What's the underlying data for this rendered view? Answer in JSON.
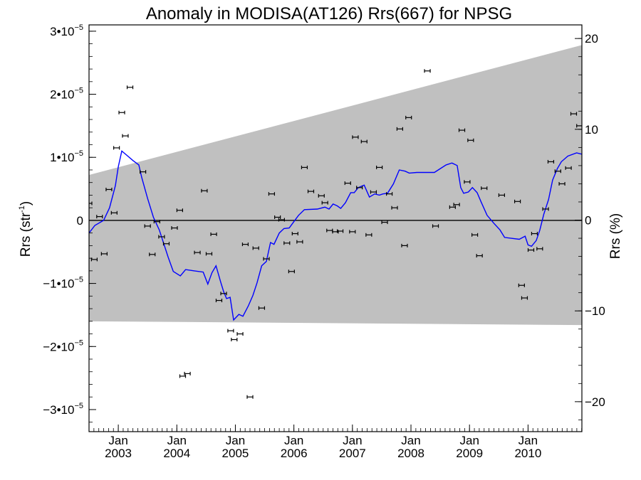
{
  "chart_data": {
    "type": "scatter",
    "title": "Anomaly in MODISA(AT126) Rrs(667) for NPSG",
    "ylabel_left": {
      "main": "Rrs (str",
      "sup": "-1",
      "tail": ")"
    },
    "ylabel_right": "Rrs (%)",
    "ylim_left": [
      -3.35e-05,
      3.1e-05
    ],
    "ylim_right": [
      -23.3,
      21.5
    ],
    "xlim": [
      2002.5,
      2010.92
    ],
    "y_ticks_left": [
      {
        "value": -3e-05,
        "base": "−3•10",
        "exp": "−5"
      },
      {
        "value": -2e-05,
        "base": "−2•10",
        "exp": "−5"
      },
      {
        "value": -1e-05,
        "base": "−1•10",
        "exp": "−5"
      },
      {
        "value": 0,
        "base": "0",
        "exp": ""
      },
      {
        "value": 1e-05,
        "base": "1•10",
        "exp": "−5"
      },
      {
        "value": 2e-05,
        "base": "2•10",
        "exp": "−5"
      },
      {
        "value": 3e-05,
        "base": "3•10",
        "exp": "−5"
      }
    ],
    "y_ticks_right": [
      {
        "value": -20,
        "label": "−20"
      },
      {
        "value": -10,
        "label": "−10"
      },
      {
        "value": 0,
        "label": "0"
      },
      {
        "value": 10,
        "label": "10"
      },
      {
        "value": 20,
        "label": "20"
      }
    ],
    "x_ticks": [
      {
        "value": 2003.0,
        "month": "Jan",
        "year": "2003"
      },
      {
        "value": 2004.0,
        "month": "Jan",
        "year": "2004"
      },
      {
        "value": 2005.0,
        "month": "Jan",
        "year": "2005"
      },
      {
        "value": 2006.0,
        "month": "Jan",
        "year": "2006"
      },
      {
        "value": 2007.0,
        "month": "Jan",
        "year": "2007"
      },
      {
        "value": 2008.0,
        "month": "Jan",
        "year": "2008"
      },
      {
        "value": 2009.0,
        "month": "Jan",
        "year": "2009"
      },
      {
        "value": 2010.0,
        "month": "Jan",
        "year": "2010"
      }
    ],
    "grey_band": {
      "upper": [
        [
          2002.5,
          7.2e-06
        ],
        [
          2010.92,
          2.78e-05
        ]
      ],
      "lower": [
        [
          2002.5,
          -1.6e-05
        ],
        [
          2010.92,
          -1.66e-05
        ]
      ]
    },
    "points": [
      [
        2002.5,
        2.7e-06
      ],
      [
        2002.59,
        -6.2e-06
      ],
      [
        2002.68,
        6e-07
      ],
      [
        2002.76,
        -5.3e-06
      ],
      [
        2002.84,
        4.9e-06
      ],
      [
        2002.93,
        1.2e-06
      ],
      [
        2002.97,
        1.15e-05
      ],
      [
        2003.06,
        1.71e-05
      ],
      [
        2003.12,
        1.34e-05
      ],
      [
        2003.2,
        2.11e-05
      ],
      [
        2003.42,
        7.7e-06
      ],
      [
        2003.5,
        -9e-07
      ],
      [
        2003.58,
        -5.4e-06
      ],
      [
        2003.66,
        -2e-07
      ],
      [
        2003.74,
        -2.6e-06
      ],
      [
        2003.82,
        -3.7e-06
      ],
      [
        2003.96,
        -1.2e-06
      ],
      [
        2004.05,
        1.6e-06
      ],
      [
        2004.1,
        -2.47e-05
      ],
      [
        2004.18,
        -2.43e-05
      ],
      [
        2004.35,
        -5.1e-06
      ],
      [
        2004.47,
        4.7e-06
      ],
      [
        2004.55,
        -5.3e-06
      ],
      [
        2004.63,
        -2.2e-06
      ],
      [
        2004.72,
        -1.27e-05
      ],
      [
        2004.8,
        -1.16e-05
      ],
      [
        2004.92,
        -1.75e-05
      ],
      [
        2004.98,
        -1.89e-05
      ],
      [
        2005.08,
        -1.8e-05
      ],
      [
        2005.17,
        -3.8e-06
      ],
      [
        2005.25,
        -2.8e-05
      ],
      [
        2005.35,
        -4.4e-06
      ],
      [
        2005.45,
        -1.39e-05
      ],
      [
        2005.53,
        -6.1e-06
      ],
      [
        2005.62,
        4.2e-06
      ],
      [
        2005.72,
        5e-07
      ],
      [
        2005.79,
        1e-07
      ],
      [
        2005.88,
        -3.6e-06
      ],
      [
        2005.96,
        -8.1e-06
      ],
      [
        2006.02,
        -2.1e-06
      ],
      [
        2006.1,
        -3.4e-06
      ],
      [
        2006.18,
        8.4e-06
      ],
      [
        2006.29,
        4.6e-06
      ],
      [
        2006.47,
        3.9e-06
      ],
      [
        2006.53,
        2.8e-06
      ],
      [
        2006.61,
        -1.6e-06
      ],
      [
        2006.71,
        -1.8e-06
      ],
      [
        2006.79,
        -1.7e-06
      ],
      [
        2006.92,
        5.9e-06
      ],
      [
        2007.0,
        -1.8e-06
      ],
      [
        2007.05,
        1.32e-05
      ],
      [
        2007.12,
        5.2e-06
      ],
      [
        2007.2,
        1.25e-05
      ],
      [
        2007.28,
        -2.3e-06
      ],
      [
        2007.36,
        4.5e-06
      ],
      [
        2007.46,
        8.4e-06
      ],
      [
        2007.55,
        -3e-07
      ],
      [
        2007.63,
        4.2e-06
      ],
      [
        2007.72,
        2e-06
      ],
      [
        2007.81,
        1.45e-05
      ],
      [
        2007.89,
        -4e-06
      ],
      [
        2007.96,
        1.63e-05
      ],
      [
        2008.28,
        2.37e-05
      ],
      [
        2008.42,
        -9e-07
      ],
      [
        2008.71,
        2.1e-06
      ],
      [
        2008.78,
        2.5e-06
      ],
      [
        2008.87,
        1.43e-05
      ],
      [
        2008.96,
        6.1e-06
      ],
      [
        2009.02,
        1.27e-05
      ],
      [
        2009.09,
        -2.3e-06
      ],
      [
        2009.17,
        -5.6e-06
      ],
      [
        2009.25,
        5.1e-06
      ],
      [
        2009.55,
        4e-06
      ],
      [
        2009.82,
        3e-06
      ],
      [
        2009.89,
        -1.03e-05
      ],
      [
        2009.94,
        -1.23e-05
      ],
      [
        2010.05,
        -4.7e-06
      ],
      [
        2010.11,
        -2.1e-06
      ],
      [
        2010.2,
        -4.5e-06
      ],
      [
        2010.3,
        1.8e-06
      ],
      [
        2010.39,
        9.3e-06
      ],
      [
        2010.51,
        7.8e-06
      ],
      [
        2010.58,
        5.8e-06
      ],
      [
        2010.69,
        8.3e-06
      ],
      [
        2010.78,
        1.69e-05
      ],
      [
        2010.88,
        1.5e-05
      ]
    ],
    "line": [
      [
        2002.5,
        -2e-06
      ],
      [
        2002.6,
        -8e-07
      ],
      [
        2002.75,
        0
      ],
      [
        2002.85,
        2e-06
      ],
      [
        2002.95,
        5.5e-06
      ],
      [
        2003.0,
        8.5e-06
      ],
      [
        2003.06,
        1.1e-05
      ],
      [
        2003.15,
        1.03e-05
      ],
      [
        2003.25,
        9.5e-06
      ],
      [
        2003.35,
        8.8e-06
      ],
      [
        2003.4,
        6.8e-06
      ],
      [
        2003.5,
        3.5e-06
      ],
      [
        2003.6,
        5e-07
      ],
      [
        2003.7,
        -1.5e-06
      ],
      [
        2003.77,
        -3.5e-06
      ],
      [
        2003.85,
        -5.8e-06
      ],
      [
        2003.94,
        -8.1e-06
      ],
      [
        2004.06,
        -8.8e-06
      ],
      [
        2004.15,
        -7.8e-06
      ],
      [
        2004.3,
        -8e-06
      ],
      [
        2004.45,
        -8.2e-06
      ],
      [
        2004.53,
        -1.01e-05
      ],
      [
        2004.6,
        -8.3e-06
      ],
      [
        2004.67,
        -7.2e-06
      ],
      [
        2004.75,
        -9.8e-06
      ],
      [
        2004.8,
        -1.13e-05
      ],
      [
        2004.85,
        -1.24e-05
      ],
      [
        2004.91,
        -1.22e-05
      ],
      [
        2004.97,
        -1.58e-05
      ],
      [
        2005.06,
        -1.49e-05
      ],
      [
        2005.13,
        -1.52e-05
      ],
      [
        2005.22,
        -1.36e-05
      ],
      [
        2005.3,
        -1.19e-05
      ],
      [
        2005.37,
        -9.9e-06
      ],
      [
        2005.45,
        -7.2e-06
      ],
      [
        2005.53,
        -6.5e-06
      ],
      [
        2005.6,
        -3.5e-06
      ],
      [
        2005.66,
        -3.8e-06
      ],
      [
        2005.75,
        -2e-06
      ],
      [
        2005.83,
        -1.3e-06
      ],
      [
        2005.92,
        -1.2e-06
      ],
      [
        2006.0,
        -2e-07
      ],
      [
        2006.08,
        8e-07
      ],
      [
        2006.18,
        1.7e-06
      ],
      [
        2006.4,
        1.8e-06
      ],
      [
        2006.53,
        2.1e-06
      ],
      [
        2006.6,
        1.8e-06
      ],
      [
        2006.67,
        2.6e-06
      ],
      [
        2006.74,
        2.3e-06
      ],
      [
        2006.8,
        1.9e-06
      ],
      [
        2006.88,
        2.8e-06
      ],
      [
        2006.97,
        4.4e-06
      ],
      [
        2007.03,
        4.4e-06
      ],
      [
        2007.1,
        5.2e-06
      ],
      [
        2007.2,
        5.6e-06
      ],
      [
        2007.29,
        3.7e-06
      ],
      [
        2007.38,
        4.2e-06
      ],
      [
        2007.46,
        4e-06
      ],
      [
        2007.52,
        4.2e-06
      ],
      [
        2007.6,
        4.3e-06
      ],
      [
        2007.7,
        5.8e-06
      ],
      [
        2007.8,
        8e-06
      ],
      [
        2007.9,
        7.8e-06
      ],
      [
        2007.97,
        7.5e-06
      ],
      [
        2008.1,
        7.6e-06
      ],
      [
        2008.4,
        7.6e-06
      ],
      [
        2008.6,
        8.8e-06
      ],
      [
        2008.7,
        9.1e-06
      ],
      [
        2008.79,
        8.7e-06
      ],
      [
        2008.85,
        5.2e-06
      ],
      [
        2008.9,
        4.3e-06
      ],
      [
        2008.98,
        4.5e-06
      ],
      [
        2009.05,
        5.2e-06
      ],
      [
        2009.13,
        4.4e-06
      ],
      [
        2009.2,
        2.9e-06
      ],
      [
        2009.3,
        8e-07
      ],
      [
        2009.42,
        -5e-07
      ],
      [
        2009.52,
        -1.5e-06
      ],
      [
        2009.6,
        -2.7e-06
      ],
      [
        2009.85,
        -3e-06
      ],
      [
        2009.95,
        -2.5e-06
      ],
      [
        2010.0,
        -3.9e-06
      ],
      [
        2010.06,
        -4.1e-06
      ],
      [
        2010.14,
        -3.2e-06
      ],
      [
        2010.2,
        -1.6e-06
      ],
      [
        2010.27,
        1e-06
      ],
      [
        2010.35,
        3.3e-06
      ],
      [
        2010.42,
        6.4e-06
      ],
      [
        2010.5,
        8.2e-06
      ],
      [
        2010.57,
        9.3e-06
      ],
      [
        2010.68,
        1.02e-05
      ],
      [
        2010.83,
        1.07e-05
      ],
      [
        2010.92,
        1.05e-05
      ]
    ],
    "legend": "none",
    "grid": false,
    "colors": {
      "band": "#c0c0c0",
      "line": "#0000ff",
      "points": "#000000",
      "axis": "#000000"
    }
  }
}
